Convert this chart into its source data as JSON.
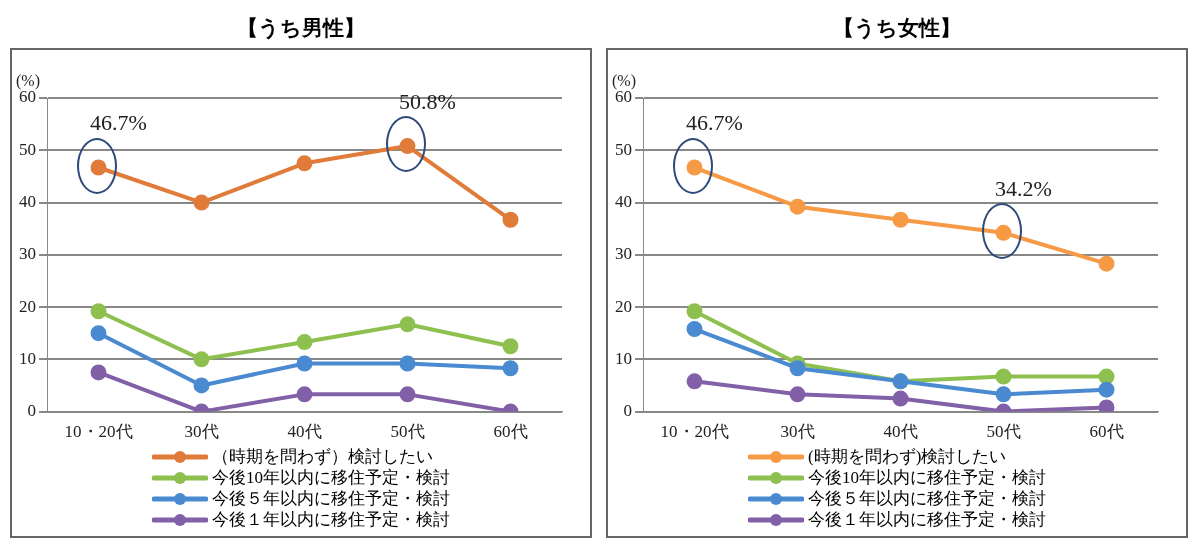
{
  "chart_data": [
    {
      "type": "line",
      "title": "【うち男性】",
      "ylabel": "(%)",
      "categories": [
        "10・20代",
        "30代",
        "40代",
        "50代",
        "60代"
      ],
      "ylim": [
        0,
        60
      ],
      "yticks": [
        0,
        10,
        20,
        30,
        40,
        50,
        60
      ],
      "grid": "y",
      "legend": "bottom",
      "marker": "circle",
      "line_style": "solid",
      "series": [
        {
          "name": "（時期を問わず）検討したい",
          "color": "#e07b39",
          "values": [
            46.7,
            40,
            47.5,
            50.8,
            36.7
          ]
        },
        {
          "name": "今後10年以内に移住予定・検討",
          "color": "#8dc04f",
          "values": [
            19.2,
            10,
            13.3,
            16.7,
            12.5
          ]
        },
        {
          "name": "今後５年以内に移住予定・検討",
          "color": "#4a8ad0",
          "values": [
            15,
            5,
            9.2,
            9.2,
            8.3
          ]
        },
        {
          "name": "今後１年以内に移住予定・検討",
          "color": "#8260a8",
          "values": [
            7.5,
            0,
            3.3,
            3.3,
            0
          ]
        }
      ],
      "annotations": [
        {
          "text": "46.7%",
          "x": "10・20代",
          "y": 46.7
        },
        {
          "text": "50.8%",
          "x": "50代",
          "y": 50.8
        }
      ]
    },
    {
      "type": "line",
      "title": "【うち女性】",
      "ylabel": "(%)",
      "categories": [
        "10・20代",
        "30代",
        "40代",
        "50代",
        "60代"
      ],
      "ylim": [
        0,
        60
      ],
      "yticks": [
        0,
        10,
        20,
        30,
        40,
        50,
        60
      ],
      "grid": "y",
      "legend": "bottom",
      "marker": "circle",
      "line_style": "solid",
      "series": [
        {
          "name": "(時期を問わず)検討したい",
          "color": "#f79a45",
          "values": [
            46.7,
            39.2,
            36.7,
            34.2,
            28.3
          ]
        },
        {
          "name": "今後10年以内に移住予定・検討",
          "color": "#8dc04f",
          "values": [
            19.2,
            9.2,
            5.8,
            6.7,
            6.7
          ]
        },
        {
          "name": "今後５年以内に移住予定・検討",
          "color": "#4a8ad0",
          "values": [
            15.8,
            8.3,
            5.8,
            3.3,
            4.2
          ]
        },
        {
          "name": "今後１年以内に移住予定・検討",
          "color": "#8260a8",
          "values": [
            5.8,
            3.3,
            2.5,
            0,
            0.8
          ]
        }
      ],
      "annotations": [
        {
          "text": "46.7%",
          "x": "10・20代",
          "y": 46.7
        },
        {
          "text": "34.2%",
          "x": "50代",
          "y": 34.2
        }
      ]
    }
  ]
}
